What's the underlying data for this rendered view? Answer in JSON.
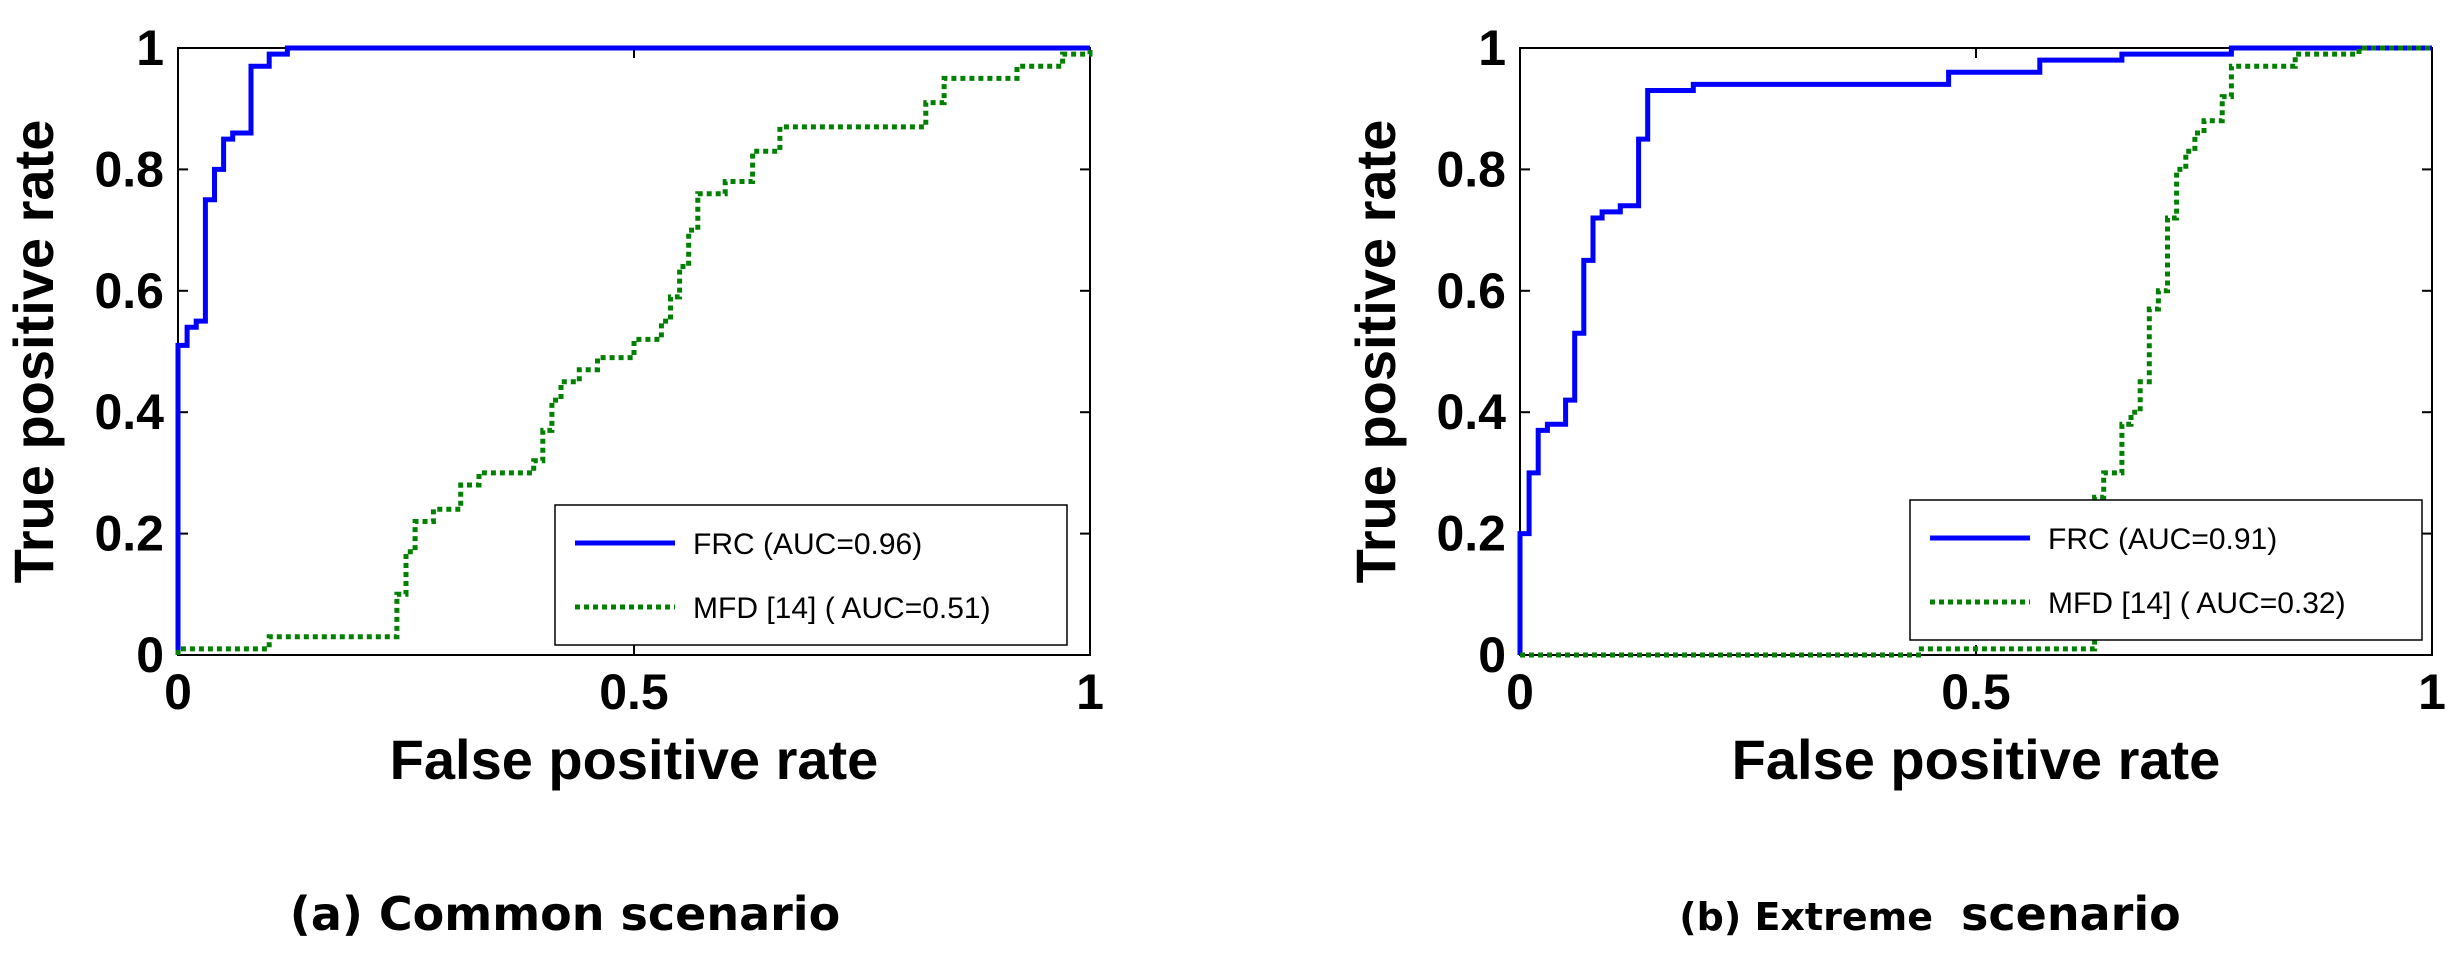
{
  "chart_data": [
    {
      "type": "line",
      "title": "",
      "caption": "(a) Common scenario",
      "xlabel": "False positive rate",
      "ylabel": "True positive rate",
      "xlim": [
        0,
        1
      ],
      "ylim": [
        0,
        1
      ],
      "xticks": [
        {
          "value": 0,
          "label": "0"
        },
        {
          "value": 0.5,
          "label": "0.5"
        },
        {
          "value": 1,
          "label": "1"
        }
      ],
      "yticks": [
        {
          "value": 0,
          "label": "0"
        },
        {
          "value": 0.2,
          "label": "0.2"
        },
        {
          "value": 0.4,
          "label": "0.4"
        },
        {
          "value": 0.6,
          "label": "0.6"
        },
        {
          "value": 0.8,
          "label": "0.8"
        },
        {
          "value": 1,
          "label": "1"
        }
      ],
      "legend_position": "bottom-right",
      "series": [
        {
          "name": "FRC (AUC=0.96)",
          "color": "#0000ff",
          "style": "solid",
          "points": [
            [
              0,
              0
            ],
            [
              0,
              0.51
            ],
            [
              0.01,
              0.51
            ],
            [
              0.01,
              0.54
            ],
            [
              0.02,
              0.54
            ],
            [
              0.02,
              0.55
            ],
            [
              0.03,
              0.55
            ],
            [
              0.03,
              0.75
            ],
            [
              0.04,
              0.75
            ],
            [
              0.04,
              0.8
            ],
            [
              0.05,
              0.8
            ],
            [
              0.05,
              0.85
            ],
            [
              0.06,
              0.85
            ],
            [
              0.06,
              0.86
            ],
            [
              0.08,
              0.86
            ],
            [
              0.08,
              0.97
            ],
            [
              0.1,
              0.97
            ],
            [
              0.1,
              0.99
            ],
            [
              0.12,
              0.99
            ],
            [
              0.12,
              1
            ],
            [
              1,
              1
            ]
          ]
        },
        {
          "name": "MFD [14] ( AUC=0.51)",
          "color": "#008000",
          "style": "dotted",
          "points": [
            [
              0,
              0
            ],
            [
              0,
              0.01
            ],
            [
              0.1,
              0.01
            ],
            [
              0.1,
              0.03
            ],
            [
              0.24,
              0.03
            ],
            [
              0.24,
              0.1
            ],
            [
              0.25,
              0.1
            ],
            [
              0.25,
              0.17
            ],
            [
              0.26,
              0.17
            ],
            [
              0.26,
              0.22
            ],
            [
              0.28,
              0.22
            ],
            [
              0.28,
              0.24
            ],
            [
              0.31,
              0.24
            ],
            [
              0.31,
              0.28
            ],
            [
              0.33,
              0.28
            ],
            [
              0.33,
              0.3
            ],
            [
              0.39,
              0.3
            ],
            [
              0.39,
              0.32
            ],
            [
              0.4,
              0.32
            ],
            [
              0.4,
              0.37
            ],
            [
              0.41,
              0.37
            ],
            [
              0.41,
              0.42
            ],
            [
              0.42,
              0.42
            ],
            [
              0.42,
              0.45
            ],
            [
              0.44,
              0.45
            ],
            [
              0.44,
              0.47
            ],
            [
              0.46,
              0.47
            ],
            [
              0.46,
              0.49
            ],
            [
              0.5,
              0.49
            ],
            [
              0.5,
              0.52
            ],
            [
              0.53,
              0.52
            ],
            [
              0.53,
              0.55
            ],
            [
              0.54,
              0.55
            ],
            [
              0.54,
              0.59
            ],
            [
              0.55,
              0.59
            ],
            [
              0.55,
              0.64
            ],
            [
              0.56,
              0.64
            ],
            [
              0.56,
              0.7
            ],
            [
              0.57,
              0.7
            ],
            [
              0.57,
              0.76
            ],
            [
              0.6,
              0.76
            ],
            [
              0.6,
              0.78
            ],
            [
              0.63,
              0.78
            ],
            [
              0.63,
              0.83
            ],
            [
              0.66,
              0.83
            ],
            [
              0.66,
              0.87
            ],
            [
              0.82,
              0.87
            ],
            [
              0.82,
              0.91
            ],
            [
              0.84,
              0.91
            ],
            [
              0.84,
              0.95
            ],
            [
              0.92,
              0.95
            ],
            [
              0.92,
              0.97
            ],
            [
              0.97,
              0.97
            ],
            [
              0.97,
              0.99
            ],
            [
              1,
              0.99
            ],
            [
              1,
              1
            ]
          ]
        }
      ]
    },
    {
      "type": "line",
      "title": "",
      "caption": "(b) Extreme scenario",
      "caption_parts": [
        "(b) Extreme",
        "scenario"
      ],
      "xlabel": "False positive rate",
      "ylabel": "True positive rate",
      "xlim": [
        0,
        1
      ],
      "ylim": [
        0,
        1
      ],
      "xticks": [
        {
          "value": 0,
          "label": "0"
        },
        {
          "value": 0.5,
          "label": "0.5"
        },
        {
          "value": 1,
          "label": "1"
        }
      ],
      "yticks": [
        {
          "value": 0,
          "label": "0"
        },
        {
          "value": 0.2,
          "label": "0.2"
        },
        {
          "value": 0.4,
          "label": "0.4"
        },
        {
          "value": 0.6,
          "label": "0.6"
        },
        {
          "value": 0.8,
          "label": "0.8"
        },
        {
          "value": 1,
          "label": "1"
        }
      ],
      "legend_position": "bottom-right",
      "series": [
        {
          "name": "FRC (AUC=0.91)",
          "color": "#0000ff",
          "style": "solid",
          "points": [
            [
              0,
              0
            ],
            [
              0,
              0.2
            ],
            [
              0.01,
              0.2
            ],
            [
              0.01,
              0.3
            ],
            [
              0.02,
              0.3
            ],
            [
              0.02,
              0.37
            ],
            [
              0.03,
              0.37
            ],
            [
              0.03,
              0.38
            ],
            [
              0.05,
              0.38
            ],
            [
              0.05,
              0.42
            ],
            [
              0.06,
              0.42
            ],
            [
              0.06,
              0.53
            ],
            [
              0.07,
              0.53
            ],
            [
              0.07,
              0.65
            ],
            [
              0.08,
              0.65
            ],
            [
              0.08,
              0.72
            ],
            [
              0.09,
              0.72
            ],
            [
              0.09,
              0.73
            ],
            [
              0.11,
              0.73
            ],
            [
              0.11,
              0.74
            ],
            [
              0.13,
              0.74
            ],
            [
              0.13,
              0.85
            ],
            [
              0.14,
              0.85
            ],
            [
              0.14,
              0.93
            ],
            [
              0.19,
              0.93
            ],
            [
              0.19,
              0.94
            ],
            [
              0.47,
              0.94
            ],
            [
              0.47,
              0.96
            ],
            [
              0.57,
              0.96
            ],
            [
              0.57,
              0.98
            ],
            [
              0.66,
              0.98
            ],
            [
              0.66,
              0.99
            ],
            [
              0.78,
              0.99
            ],
            [
              0.78,
              1
            ],
            [
              1,
              1
            ]
          ]
        },
        {
          "name": "MFD [14] ( AUC=0.32)",
          "color": "#008000",
          "style": "dotted",
          "points": [
            [
              0,
              0
            ],
            [
              0.44,
              0
            ],
            [
              0.44,
              0.01
            ],
            [
              0.63,
              0.01
            ],
            [
              0.63,
              0.26
            ],
            [
              0.64,
              0.26
            ],
            [
              0.64,
              0.3
            ],
            [
              0.66,
              0.3
            ],
            [
              0.66,
              0.38
            ],
            [
              0.67,
              0.38
            ],
            [
              0.67,
              0.4
            ],
            [
              0.68,
              0.4
            ],
            [
              0.68,
              0.45
            ],
            [
              0.69,
              0.45
            ],
            [
              0.69,
              0.57
            ],
            [
              0.7,
              0.57
            ],
            [
              0.7,
              0.6
            ],
            [
              0.71,
              0.6
            ],
            [
              0.71,
              0.72
            ],
            [
              0.72,
              0.72
            ],
            [
              0.72,
              0.8
            ],
            [
              0.73,
              0.8
            ],
            [
              0.73,
              0.83
            ],
            [
              0.74,
              0.83
            ],
            [
              0.74,
              0.86
            ],
            [
              0.75,
              0.86
            ],
            [
              0.75,
              0.88
            ],
            [
              0.77,
              0.88
            ],
            [
              0.77,
              0.92
            ],
            [
              0.78,
              0.92
            ],
            [
              0.78,
              0.97
            ],
            [
              0.85,
              0.97
            ],
            [
              0.85,
              0.99
            ],
            [
              0.92,
              0.99
            ],
            [
              0.92,
              1
            ],
            [
              1,
              1
            ]
          ]
        }
      ]
    }
  ]
}
